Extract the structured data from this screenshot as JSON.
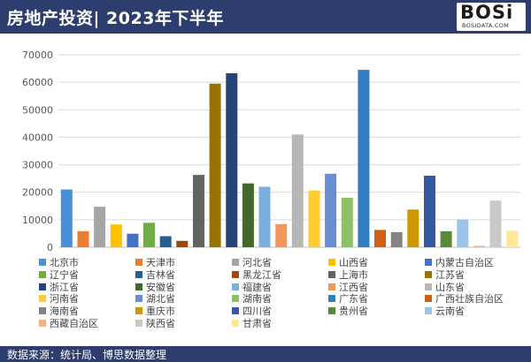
{
  "header": {
    "title": "房地产投资| 2023年下半年",
    "logo_main": "BOSi",
    "logo_sub": "BOSIDATA.COM"
  },
  "footer": {
    "source": "数据来源：统计局、博思数据整理"
  },
  "colors": {
    "header_bg": "#2d3d6d",
    "grid": "#d9d9d9"
  },
  "chart_data": {
    "type": "bar",
    "title": "",
    "xlabel": "",
    "ylabel": "",
    "ylim": [
      0,
      70000
    ],
    "yticks": [
      "0",
      "10000",
      "20000",
      "30000",
      "40000",
      "50000",
      "60000",
      "70000"
    ],
    "grid": true,
    "legend_position": "bottom",
    "categories": [
      "北京市",
      "天津市",
      "河北省",
      "山西省",
      "内蒙古自治区",
      "辽宁省",
      "吉林省",
      "黑龙江省",
      "上海市",
      "江苏省",
      "浙江省",
      "安徽省",
      "福建省",
      "江西省",
      "山东省",
      "河南省",
      "湖北省",
      "湖南省",
      "广东省",
      "广西壮族自治区",
      "海南省",
      "重庆市",
      "四川省",
      "贵州省",
      "云南省",
      "西藏自治区",
      "陕西省",
      "甘肃省"
    ],
    "values": [
      21000,
      5800,
      14700,
      8300,
      4900,
      8900,
      4000,
      2300,
      26300,
      59500,
      63300,
      23200,
      22000,
      8400,
      41000,
      20600,
      26700,
      18000,
      64500,
      6300,
      5500,
      13700,
      26000,
      5800,
      10100,
      500,
      17000,
      6000
    ],
    "colors": [
      "#4a90d9",
      "#ed7d31",
      "#a5a5a5",
      "#ffc000",
      "#4472c4",
      "#70ad47",
      "#255e91",
      "#9e480e",
      "#636363",
      "#997300",
      "#264478",
      "#43682b",
      "#7cafdd",
      "#f1975a",
      "#b7b7b7",
      "#ffcd33",
      "#698ed0",
      "#8cc168",
      "#327dc2",
      "#d26012",
      "#848484",
      "#cc9a00",
      "#335aa1",
      "#5a8a39",
      "#9dc3e6",
      "#f4b183",
      "#c9c9c9",
      "#ffe699"
    ]
  }
}
